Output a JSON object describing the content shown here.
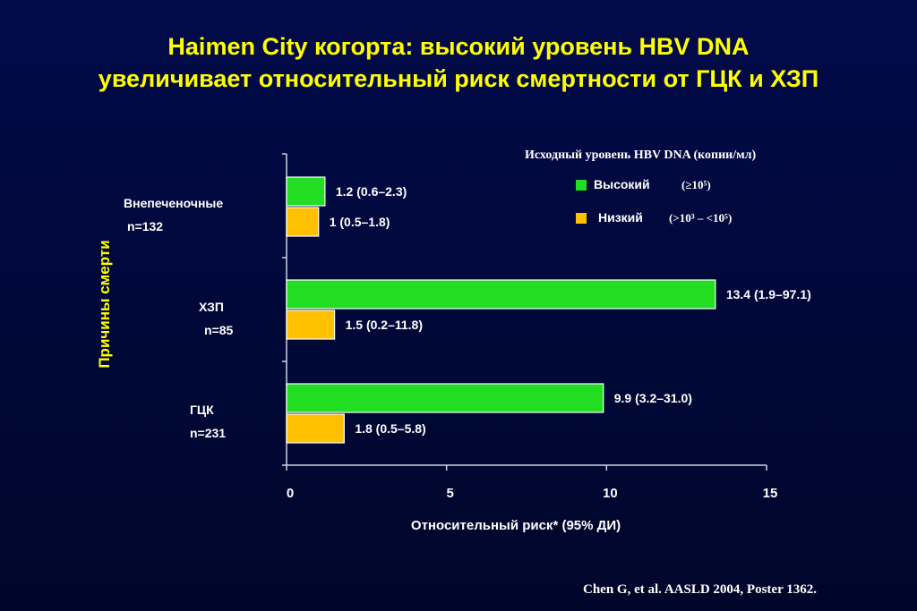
{
  "title": {
    "line1": "Haimen City когорта: высокий уровень HBV DNA",
    "line2": "увеличивает относительный риск смертности от ГЦК и ХЗП"
  },
  "legend": {
    "title": "Исходный уровень HBV DNA (копии/мл)",
    "items": [
      {
        "name": "Высокий",
        "range": "(≥10⁵)",
        "color": "#22dd22"
      },
      {
        "name": "Низкий",
        "range": "(>10³ – <10⁵)",
        "color": "#ffc000"
      }
    ]
  },
  "source": "Chen G, et al. AASLD 2004, Poster 1362.",
  "chart_data": {
    "type": "bar",
    "orientation": "horizontal",
    "xlabel": "Относительный риск* (95% ДИ)",
    "ylabel": "Причины смерти",
    "xlim": [
      0,
      15
    ],
    "xticks": [
      "0",
      "5",
      "10",
      "15"
    ],
    "categories": [
      {
        "name": "Внепеченочные",
        "n": "n=132"
      },
      {
        "name": "ХЗП",
        "n": "n=85"
      },
      {
        "name": "ГЦК",
        "n": "n=231"
      }
    ],
    "series": [
      {
        "name": "Высокий",
        "color": "#22dd22",
        "values": [
          1.2,
          13.4,
          9.9
        ],
        "labels": [
          "1.2 (0.6–2.3)",
          "13.4 (1.9–97.1)",
          "9.9 (3.2–31.0)"
        ]
      },
      {
        "name": "Низкий",
        "color": "#ffc000",
        "values": [
          1.0,
          1.5,
          1.8
        ],
        "labels": [
          "1 (0.5–1.8)",
          "1.5 (0.2–11.8)",
          "1.8 (0.5–5.8)"
        ]
      }
    ]
  }
}
